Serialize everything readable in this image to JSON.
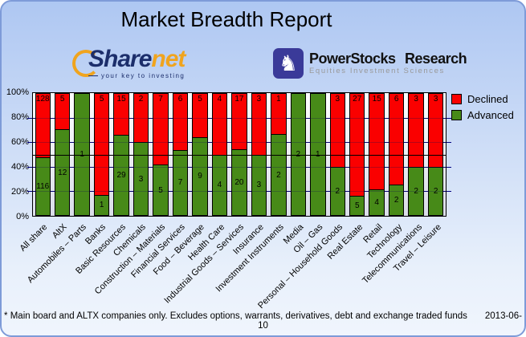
{
  "window": {
    "title": "Market Breadth Report"
  },
  "logos": {
    "sharenet": {
      "word1": "Share",
      "word2": "net",
      "tagline": "your key to investing",
      "navy": "#1c2e6b",
      "orange": "#f0a41e"
    },
    "powerstocks": {
      "title": "PowerStocks Research",
      "subtitle": "Equities Investment Sciences",
      "icon": "knight-chess-icon",
      "glyph": "♞",
      "indigo": "#3a3a99"
    }
  },
  "chart_data": {
    "type": "bar",
    "stacked": true,
    "categories": [
      "All share",
      "AltX",
      "Automobiles – Parts",
      "Banks",
      "Basic Resources",
      "Chemicals",
      "Construction – Materials",
      "Financial Services",
      "Food – Beverage",
      "Health Care",
      "Industrial Goods – Services",
      "Insurance",
      "Investment Instruments",
      "Media",
      "Oil – Gas",
      "Personal – Household Goods",
      "Real Estate",
      "Retail",
      "Technology",
      "Telecommunications",
      "Travel – Leisure"
    ],
    "series": [
      {
        "name": "Declined",
        "color": "#fa0000",
        "values": [
          128,
          5,
          0,
          5,
          15,
          2,
          7,
          6,
          5,
          4,
          17,
          3,
          1,
          0,
          0,
          3,
          27,
          15,
          6,
          3,
          3
        ]
      },
      {
        "name": "Advanced",
        "color": "#478a18",
        "values": [
          116,
          12,
          1,
          1,
          29,
          3,
          5,
          7,
          9,
          4,
          20,
          3,
          2,
          2,
          1,
          2,
          5,
          4,
          2,
          2,
          2
        ]
      }
    ],
    "value_unit": "percent of sector total (stacked to 100%)",
    "y_ticks": [
      "100%",
      "80%",
      "60%",
      "40%",
      "20%",
      "0%"
    ],
    "ylim": [
      0,
      100
    ],
    "gridlines_at": [
      20,
      40,
      60,
      80
    ],
    "midline_at": 50,
    "grid": true,
    "legend_position": "top-right",
    "colors": {
      "gridline": "#000080",
      "midline": "#000000",
      "plot_bg_top": "#ffffff",
      "plot_bg_bottom": "#d9dde8"
    }
  },
  "footer": {
    "note": "* Main board and ALTX companies only. Excludes options, warrants, derivatives, debt and exchange traded funds",
    "date": "2013-06-10"
  },
  "theme": {
    "window_border": "#7e9bd8",
    "window_bg_top": "#aec7f2",
    "window_bg_bottom": "#f0f5fd"
  }
}
